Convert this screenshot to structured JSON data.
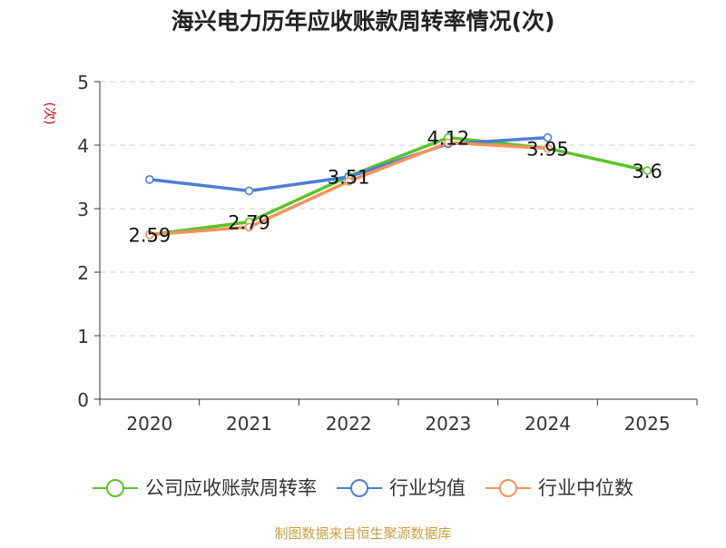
{
  "chart_data": {
    "type": "line",
    "title": "海兴电力历年应收账款周转率情况(次)",
    "ylabel": "(次)",
    "xlabel": "",
    "categories": [
      "2020",
      "2021",
      "2022",
      "2023",
      "2024",
      "2025"
    ],
    "ylim": [
      0,
      5
    ],
    "yticks": [
      "0",
      "1",
      "2",
      "3",
      "4",
      "5"
    ],
    "grid": "horizontal-dashed",
    "legend_position": "bottom",
    "series": [
      {
        "name": "公司应收账款周转率",
        "color": "#5cc22b",
        "values": [
          2.59,
          2.79,
          3.51,
          4.12,
          3.95,
          3.6
        ],
        "labels": [
          "2.59",
          "2.79",
          "3.51",
          "4.12",
          "3.95",
          "3.6"
        ],
        "show_labels": true
      },
      {
        "name": "行业均值",
        "color": "#4a7fd4",
        "values": [
          3.46,
          3.28,
          3.5,
          4.02,
          4.12,
          null
        ],
        "show_labels": false
      },
      {
        "name": "行业中位数",
        "color": "#f4925a",
        "values": [
          2.59,
          2.71,
          3.43,
          4.04,
          3.95,
          null
        ],
        "show_labels": false
      }
    ]
  },
  "footer": {
    "source": "制图数据来自恒生聚源数据库"
  },
  "colors": {
    "title": "#222222",
    "axis": "#333333",
    "ylabel": "#cc0000",
    "grid": "#cccccc",
    "source": "#c8a040"
  }
}
